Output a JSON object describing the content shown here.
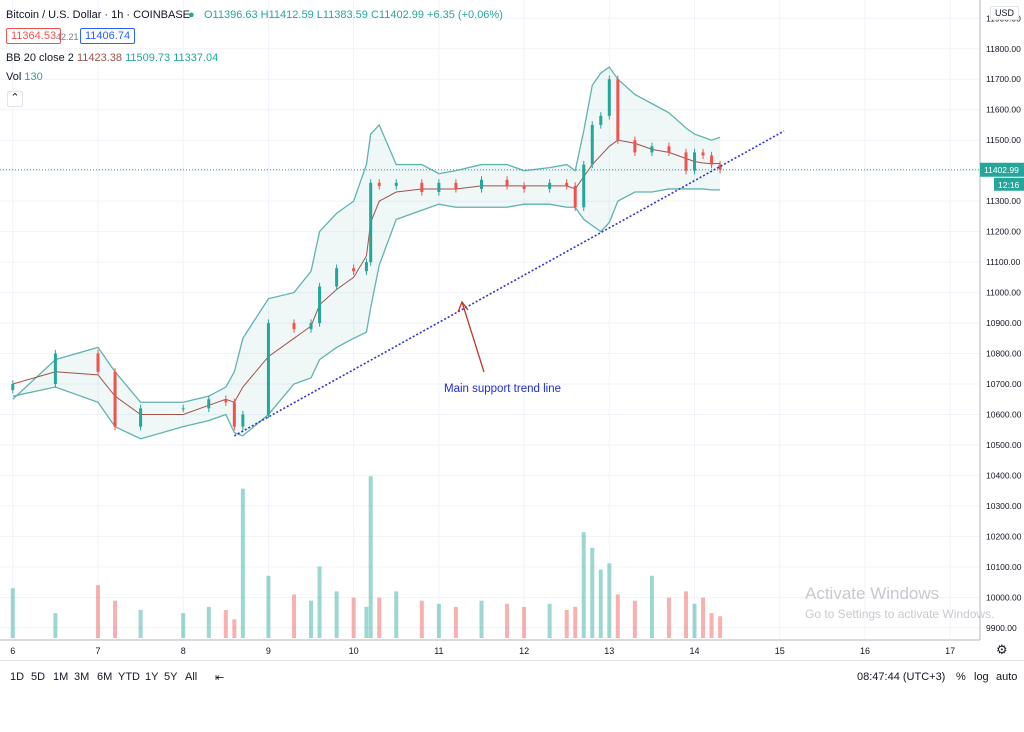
{
  "header": {
    "symbol": "Bitcoin / U.S. Dollar · 1h · COINBASE",
    "ohlc": "O11396.63 H11412.59 L11383.59 C11402.99 +6.35 (+0.06%)",
    "bid": "11364.53",
    "spread": "42.21",
    "ask": "11406.74",
    "bb_label": "BB 20 close 2",
    "bb_basis": "11423.38",
    "bb_upper": "11509.73",
    "bb_lower": "11337.04",
    "vol_label": "Vol",
    "vol_value": "130",
    "currency": "USD",
    "collapse_icon": "chevron-up-icon"
  },
  "price_scale": {
    "last_price": "11402.99",
    "countdown": "12:16"
  },
  "annotation": {
    "text": "Main support trend line"
  },
  "bottom_bar": {
    "timeframes": [
      "1D",
      "5D",
      "1M",
      "3M",
      "6M",
      "YTD",
      "1Y",
      "5Y",
      "All"
    ],
    "clock": "08:47:44 (UTC+3)",
    "percent": "%",
    "log": "log",
    "auto": "auto"
  },
  "watermark": {
    "line1": "Activate Windows",
    "line2": "Go to Settings to activate Windows."
  },
  "colors": {
    "up": "#26a69a",
    "down": "#ef5350",
    "band": "#5fb3b0",
    "basis": "#a0524b",
    "trend": "#3333cc",
    "annotation": "#1f2bd6",
    "arrow": "#c0392b"
  },
  "chart_data": {
    "type": "candlestick",
    "x_tick_labels": [
      "6",
      "7",
      "8",
      "9",
      "10",
      "11",
      "12",
      "13",
      "14",
      "15",
      "16",
      "17"
    ],
    "y_tick_labels": [
      "9900.00",
      "10000.00",
      "10100.00",
      "10200.00",
      "10300.00",
      "10400.00",
      "10500.00",
      "10600.00",
      "10700.00",
      "10800.00",
      "10900.00",
      "11000.00",
      "11100.00",
      "11200.00",
      "11300.00",
      "11400.00",
      "11500.00",
      "11600.00",
      "11700.00",
      "11800.00",
      "11900.00"
    ],
    "x": [
      6.0,
      6.5,
      7.0,
      7.2,
      7.5,
      8.0,
      8.3,
      8.5,
      8.6,
      8.7,
      9.0,
      9.3,
      9.5,
      9.6,
      9.8,
      10.0,
      10.15,
      10.2,
      10.3,
      10.5,
      10.8,
      11.0,
      11.2,
      11.5,
      11.8,
      12.0,
      12.3,
      12.5,
      12.6,
      12.7,
      12.8,
      12.9,
      13.0,
      13.1,
      13.3,
      13.5,
      13.7,
      13.9,
      14.0,
      14.1,
      14.2,
      14.3
    ],
    "close": [
      10700,
      10800,
      10740,
      10560,
      10620,
      10620,
      10650,
      10640,
      10560,
      10600,
      10900,
      10880,
      10900,
      11020,
      11080,
      11070,
      11100,
      11360,
      11350,
      11360,
      11330,
      11360,
      11340,
      11370,
      11350,
      11340,
      11360,
      11350,
      11280,
      11420,
      11550,
      11580,
      11700,
      11500,
      11460,
      11480,
      11460,
      11400,
      11460,
      11450,
      11420,
      11402.99
    ],
    "volume": [
      10020,
      9940,
      10030,
      9980,
      9950,
      9940,
      9960,
      9950,
      9920,
      10340,
      10060,
      10000,
      9980,
      10090,
      10010,
      9990,
      9960,
      10380,
      9990,
      10010,
      9980,
      9970,
      9960,
      9980,
      9970,
      9960,
      9970,
      9950,
      9960,
      10200,
      10150,
      10080,
      10100,
      10000,
      9980,
      10060,
      9990,
      10010,
      9970,
      9990,
      9940,
      9930
    ],
    "bb_upper": [
      10650,
      10780,
      10820,
      10740,
      10640,
      10640,
      10660,
      10690,
      10740,
      10850,
      10980,
      11000,
      11070,
      11200,
      11260,
      11300,
      11420,
      11520,
      11550,
      11420,
      11420,
      11390,
      11400,
      11420,
      11420,
      11400,
      11410,
      11420,
      11400,
      11530,
      11680,
      11720,
      11740,
      11700,
      11650,
      11620,
      11590,
      11540,
      11520,
      11510,
      11500,
      11509.73
    ],
    "bb_basis": [
      10700,
      10740,
      10730,
      10660,
      10600,
      10600,
      10630,
      10650,
      10640,
      10690,
      10790,
      10850,
      10890,
      10960,
      11010,
      11050,
      11120,
      11230,
      11300,
      11330,
      11340,
      11340,
      11340,
      11350,
      11350,
      11350,
      11350,
      11350,
      11340,
      11380,
      11420,
      11450,
      11480,
      11500,
      11490,
      11470,
      11460,
      11440,
      11430,
      11425,
      11423,
      11423.38
    ],
    "bb_lower": [
      10660,
      10690,
      10640,
      10560,
      10520,
      10560,
      10580,
      10600,
      10540,
      10530,
      10600,
      10700,
      10720,
      10780,
      10820,
      10850,
      10870,
      10950,
      11090,
      11240,
      11270,
      11290,
      11280,
      11280,
      11280,
      11290,
      11290,
      11280,
      11280,
      11240,
      11220,
      11200,
      11230,
      11300,
      11330,
      11330,
      11340,
      11340,
      11340,
      11340,
      11337,
      11337.04
    ],
    "trend_line": {
      "from": [
        8.6,
        10530
      ],
      "to": [
        15.05,
        11530
      ]
    },
    "last_price": 11402.99,
    "ylim": [
      9860,
      11960
    ],
    "xlim": [
      5.85,
      17.35
    ],
    "grid": true
  }
}
